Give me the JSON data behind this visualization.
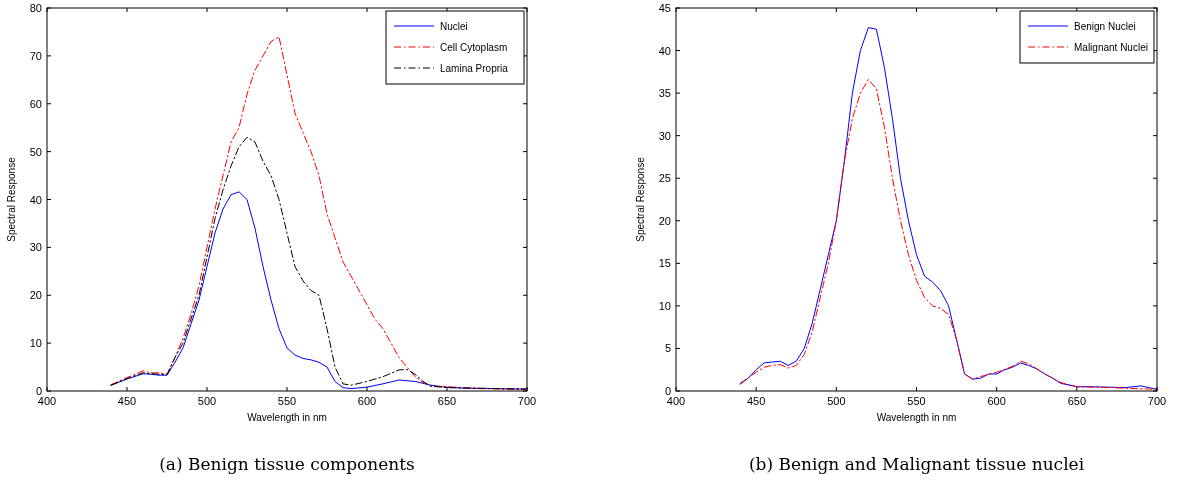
{
  "chart_data": [
    {
      "type": "line",
      "title": "(a)  Benign tissue components",
      "xlabel": "Wavelength in nm",
      "ylabel": "Spectral Response",
      "xlim": [
        400,
        700
      ],
      "xticks": [
        400,
        450,
        500,
        550,
        600,
        650,
        700
      ],
      "ylim": [
        0,
        80
      ],
      "yticks": [
        0,
        10,
        20,
        30,
        40,
        50,
        60,
        70,
        80
      ],
      "grid": false,
      "legend": "top right",
      "series": [
        {
          "name": "Nuclei",
          "color": "#0000ff",
          "line_style": "solid",
          "x": [
            440,
            450,
            460,
            465,
            470,
            475,
            480,
            485,
            490,
            495,
            500,
            505,
            510,
            515,
            520,
            525,
            530,
            535,
            540,
            545,
            550,
            555,
            560,
            565,
            570,
            575,
            580,
            585,
            590,
            600,
            610,
            620,
            630,
            640,
            650,
            660,
            680,
            700
          ],
          "values": [
            1.2,
            2.5,
            3.6,
            3.5,
            3.3,
            3.3,
            6,
            9,
            14,
            19,
            26,
            33,
            38,
            41,
            41.6,
            40,
            34,
            26,
            19,
            13,
            9,
            7.5,
            6.8,
            6.5,
            6,
            5,
            2,
            0.7,
            0.5,
            0.8,
            1.5,
            2.3,
            2,
            1.2,
            0.8,
            0.6,
            0.5,
            0.4
          ]
        },
        {
          "name": "Cell Cytoplasm",
          "color": "#ff0000",
          "line_style": "dashed",
          "x": [
            440,
            450,
            460,
            465,
            470,
            475,
            480,
            485,
            490,
            495,
            500,
            505,
            510,
            515,
            520,
            525,
            530,
            535,
            540,
            545,
            550,
            555,
            560,
            565,
            570,
            575,
            580,
            585,
            590,
            595,
            600,
            605,
            610,
            615,
            620,
            625,
            630,
            635,
            640,
            650,
            670,
            700
          ],
          "values": [
            1.3,
            2.8,
            4.2,
            3.8,
            3.8,
            3.5,
            7,
            11,
            16,
            22,
            30,
            38,
            45,
            52,
            55,
            62,
            67,
            70,
            73,
            74,
            66,
            58,
            54,
            50,
            45,
            37,
            32,
            27,
            24,
            21,
            18,
            15,
            13,
            10,
            7,
            5,
            3,
            1.8,
            1,
            0.9,
            0.5,
            0.3
          ]
        },
        {
          "name": "Lamina Propria",
          "color": "#000000",
          "line_style": "dashed",
          "x": [
            440,
            450,
            460,
            465,
            470,
            475,
            480,
            485,
            490,
            495,
            500,
            505,
            510,
            515,
            520,
            525,
            530,
            535,
            540,
            545,
            550,
            555,
            560,
            565,
            570,
            575,
            580,
            585,
            590,
            600,
            610,
            620,
            625,
            630,
            635,
            640,
            650,
            700
          ],
          "values": [
            1.2,
            2.6,
            3.8,
            3.6,
            3.5,
            3.4,
            7,
            10,
            15,
            20,
            28,
            36,
            42,
            47,
            51,
            53,
            52,
            48,
            45,
            40,
            33,
            26,
            23,
            21,
            20,
            13,
            5,
            1.5,
            1.2,
            2,
            3,
            4.4,
            4.5,
            3.5,
            2,
            1,
            0.7,
            0.4
          ]
        }
      ]
    },
    {
      "type": "line",
      "title": "(b)  Benign and Malignant tissue nuclei",
      "xlabel": "Wavelength in nm",
      "ylabel": "Spectral Response",
      "xlim": [
        400,
        700
      ],
      "xticks": [
        400,
        450,
        500,
        550,
        600,
        650,
        700
      ],
      "ylim": [
        0,
        45
      ],
      "yticks": [
        0,
        5,
        10,
        15,
        20,
        25,
        30,
        35,
        40,
        45
      ],
      "grid": false,
      "legend": "top right",
      "series": [
        {
          "name": "Benign Nuclei",
          "color": "#0000ff",
          "line_style": "solid",
          "x": [
            440,
            445,
            450,
            455,
            460,
            465,
            470,
            475,
            480,
            485,
            490,
            495,
            500,
            505,
            510,
            515,
            520,
            525,
            530,
            535,
            540,
            545,
            550,
            555,
            560,
            565,
            570,
            575,
            580,
            585,
            590,
            595,
            600,
            605,
            610,
            615,
            620,
            625,
            630,
            635,
            640,
            650,
            660,
            680,
            690,
            700
          ],
          "values": [
            0.8,
            1.5,
            2.5,
            3.3,
            3.4,
            3.5,
            3,
            3.5,
            5,
            8,
            12,
            16,
            20,
            27,
            35,
            40,
            42.7,
            42.5,
            38,
            32,
            25,
            20,
            16,
            13.5,
            12.8,
            11.8,
            10,
            6,
            2,
            1.4,
            1.5,
            2,
            2,
            2.5,
            2.8,
            3.3,
            3,
            2.6,
            2,
            1.5,
            0.9,
            0.5,
            0.5,
            0.4,
            0.6,
            0.2
          ]
        },
        {
          "name": "Malignant Nuclei",
          "color": "#ff0000",
          "line_style": "dashed",
          "x": [
            440,
            450,
            455,
            460,
            465,
            470,
            475,
            480,
            485,
            490,
            495,
            500,
            505,
            510,
            515,
            520,
            525,
            530,
            535,
            540,
            545,
            550,
            555,
            560,
            565,
            570,
            575,
            580,
            585,
            590,
            600,
            610,
            615,
            620,
            630,
            640,
            650,
            670,
            700
          ],
          "values": [
            0.9,
            2.2,
            2.8,
            3,
            3.1,
            2.7,
            3,
            4.3,
            7,
            11,
            15,
            20,
            27,
            32,
            35,
            36.6,
            35.5,
            31,
            25,
            20,
            16,
            13,
            11,
            10,
            9.7,
            9,
            6,
            2,
            1.4,
            1.7,
            2.2,
            2.9,
            3.5,
            3.2,
            2,
            1,
            0.5,
            0.4,
            0.2
          ]
        }
      ]
    }
  ]
}
